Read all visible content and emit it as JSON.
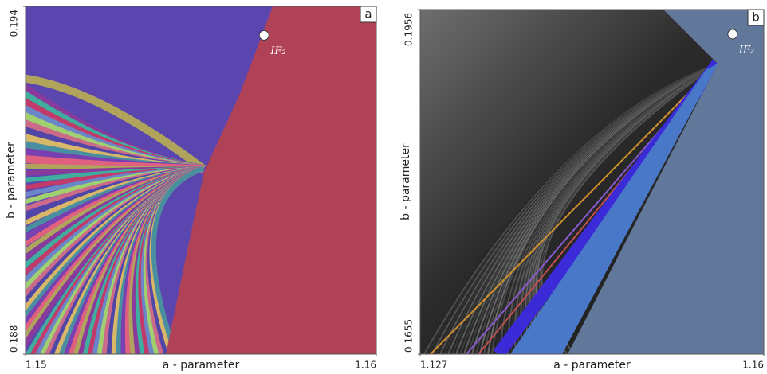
{
  "chart_data": [
    {
      "type": "scatter",
      "panel_label": "a",
      "xlabel": "a - parameter",
      "ylabel": "b - parameter",
      "xlim": [
        1.15,
        1.16
      ],
      "ylim": [
        0.188,
        0.194
      ],
      "xticks": [
        1.15,
        1.16
      ],
      "yticks": [
        0.188,
        0.194
      ],
      "points": [
        {
          "label": "IF₂",
          "x": 1.1568,
          "y": 0.1935
        }
      ]
    },
    {
      "type": "scatter",
      "panel_label": "b",
      "xlabel": "a - parameter",
      "ylabel": "b - parameter",
      "xlim": [
        1.127,
        1.16
      ],
      "ylim": [
        0.1655,
        0.1956
      ],
      "xticks": [
        1.127,
        1.16
      ],
      "yticks": [
        0.1655,
        0.1956
      ],
      "points": [
        {
          "label": "IF₂",
          "x": 1.157,
          "y": 0.19345
        }
      ]
    }
  ]
}
